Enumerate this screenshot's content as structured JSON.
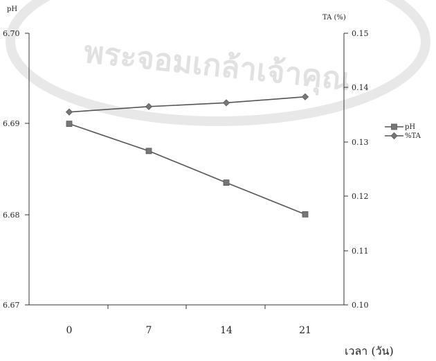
{
  "chart_data": {
    "type": "line",
    "xlabel": "เวลา (วัน)",
    "x": [
      0,
      7,
      14,
      21
    ],
    "x_tick_labels": [
      "0",
      "7",
      "14",
      "21"
    ],
    "y_left": {
      "label": "pH",
      "range": [
        6.67,
        6.7
      ],
      "ticks": [
        "6.67",
        "6.68",
        "6.69",
        "6.70"
      ]
    },
    "y_right": {
      "label": "TA (%)",
      "range": [
        0.1,
        0.15
      ],
      "ticks": [
        "0.10",
        "0.11",
        "0.12",
        "0.13",
        "0.14",
        "0.15"
      ]
    },
    "series": [
      {
        "name": "pH",
        "axis": "left",
        "marker": "square",
        "values": [
          6.69,
          6.687,
          6.6835,
          6.68
        ],
        "color": "#555555"
      },
      {
        "name": "%TA",
        "axis": "right",
        "marker": "diamond",
        "values": [
          0.1355,
          0.1365,
          0.1372,
          0.1383
        ],
        "color": "#555555"
      }
    ],
    "legend_position": "right",
    "grid": false
  },
  "watermark": {
    "text": "พระจอมเกล้าเจ้าคุณ"
  }
}
